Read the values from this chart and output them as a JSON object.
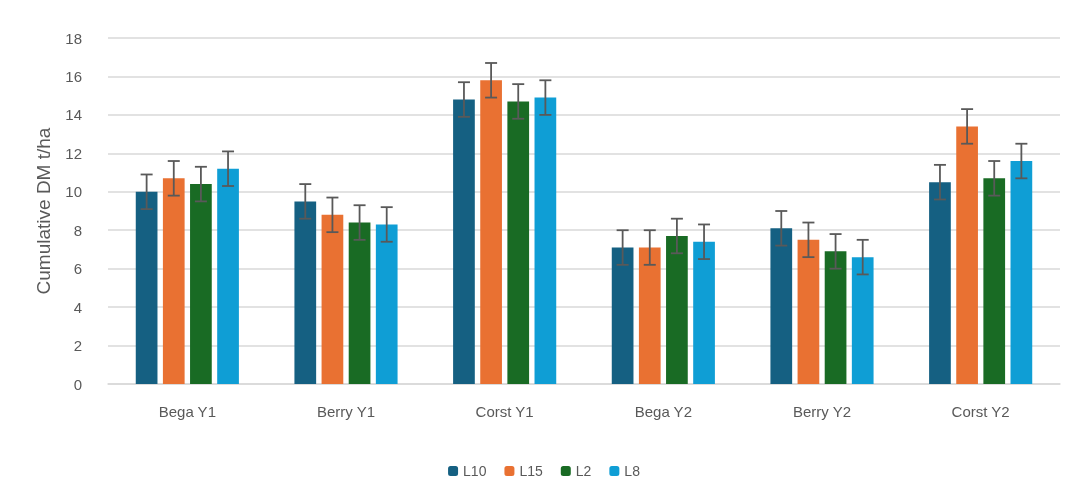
{
  "chart_data": {
    "type": "bar",
    "ylabel": "Cumulative DM t/ha",
    "categories": [
      "Bega Y1",
      "Berry Y1",
      "Corst Y1",
      "Bega Y2",
      "Berry Y2",
      "Corst Y2"
    ],
    "series": [
      {
        "name": "L10",
        "color": "#156082",
        "values": [
          10.0,
          9.5,
          14.8,
          7.1,
          8.1,
          10.5
        ],
        "errors": [
          0.9,
          0.9,
          0.9,
          0.9,
          0.9,
          0.9
        ]
      },
      {
        "name": "L15",
        "color": "#e97132",
        "values": [
          10.7,
          8.8,
          15.8,
          7.1,
          7.5,
          13.4
        ],
        "errors": [
          0.9,
          0.9,
          0.9,
          0.9,
          0.9,
          0.9
        ]
      },
      {
        "name": "L2",
        "color": "#196b24",
        "values": [
          10.4,
          8.4,
          14.7,
          7.7,
          6.9,
          10.7
        ],
        "errors": [
          0.9,
          0.9,
          0.9,
          0.9,
          0.9,
          0.9
        ]
      },
      {
        "name": "L8",
        "color": "#0f9ed5",
        "values": [
          11.2,
          8.3,
          14.9,
          7.4,
          6.6,
          11.6
        ],
        "errors": [
          0.9,
          0.9,
          0.9,
          0.9,
          0.9,
          0.9
        ]
      }
    ],
    "ylim": [
      0,
      18
    ],
    "yticks": [
      0,
      2,
      4,
      6,
      8,
      10,
      12,
      14,
      16,
      18
    ],
    "grid": "y",
    "legend": "bottom"
  }
}
